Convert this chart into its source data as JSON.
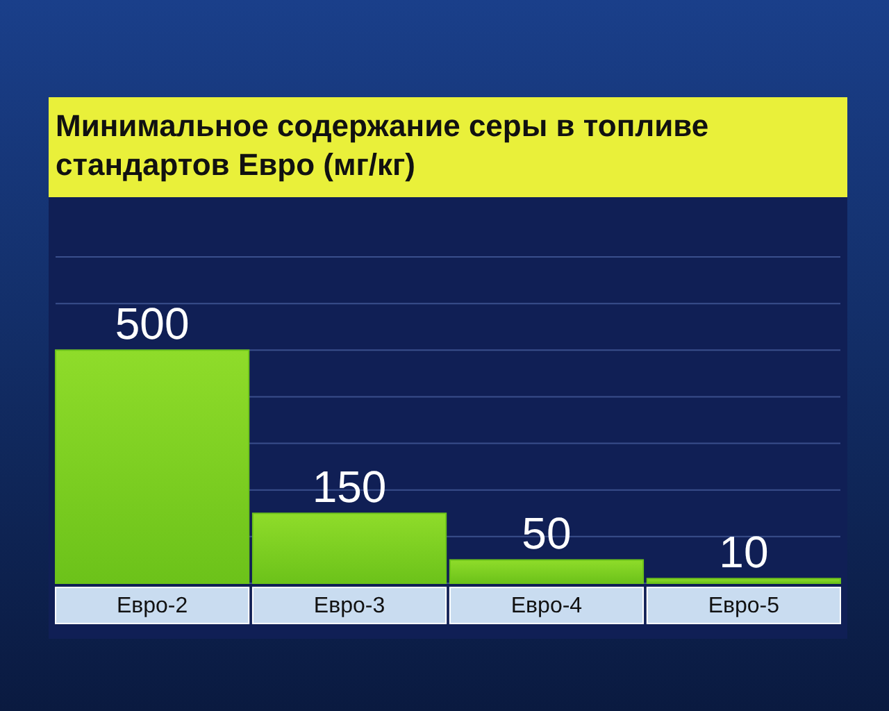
{
  "chart_data": {
    "type": "bar",
    "title": "Минимальное содержание серы в топливе стандартов Евро (мг/кг)",
    "categories": [
      "Евро-2",
      "Евро-3",
      "Евро-4",
      "Евро-5"
    ],
    "values": [
      500,
      150,
      50,
      10
    ],
    "color": "#6cc21a",
    "data_labels": true,
    "ylim": [
      0,
      700
    ],
    "yticks": [
      {
        "value": 0,
        "label": null
      },
      {
        "value": 100,
        "label": null
      },
      {
        "value": 200,
        "label": null
      },
      {
        "value": 300,
        "label": null
      },
      {
        "value": 400,
        "label": null
      },
      {
        "value": 500,
        "label": null
      },
      {
        "value": 600,
        "label": null
      },
      {
        "value": 700,
        "label": null
      }
    ],
    "tick_labels": "x",
    "grid": "y"
  }
}
